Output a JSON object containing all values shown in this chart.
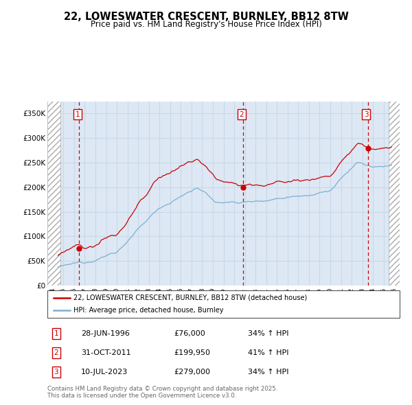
{
  "title_line1": "22, LOWESWATER CRESCENT, BURNLEY, BB12 8TW",
  "title_line2": "Price paid vs. HM Land Registry's House Price Index (HPI)",
  "ylabel_ticks": [
    "£0",
    "£50K",
    "£100K",
    "£150K",
    "£200K",
    "£250K",
    "£300K",
    "£350K"
  ],
  "ytick_values": [
    0,
    50000,
    100000,
    150000,
    200000,
    250000,
    300000,
    350000
  ],
  "ylim": [
    0,
    375000
  ],
  "xlim_start": 1993.5,
  "xlim_end": 2026.5,
  "sale_dates": [
    1996.49,
    2011.83,
    2023.52
  ],
  "sale_prices": [
    76000,
    199950,
    279000
  ],
  "sale_labels": [
    "1",
    "2",
    "3"
  ],
  "hpi_color": "#7bafd4",
  "price_color": "#cc0000",
  "sale_marker_color": "#cc0000",
  "grid_color": "#c8d8e8",
  "bg_color": "#dde8f4",
  "legend_label_red": "22, LOWESWATER CRESCENT, BURNLEY, BB12 8TW (detached house)",
  "legend_label_blue": "HPI: Average price, detached house, Burnley",
  "table_rows": [
    [
      "1",
      "28-JUN-1996",
      "£76,000",
      "34% ↑ HPI"
    ],
    [
      "2",
      "31-OCT-2011",
      "£199,950",
      "41% ↑ HPI"
    ],
    [
      "3",
      "10-JUL-2023",
      "£279,000",
      "34% ↑ HPI"
    ]
  ],
  "footnote": "Contains HM Land Registry data © Crown copyright and database right 2025.\nThis data is licensed under the Open Government Licence v3.0."
}
